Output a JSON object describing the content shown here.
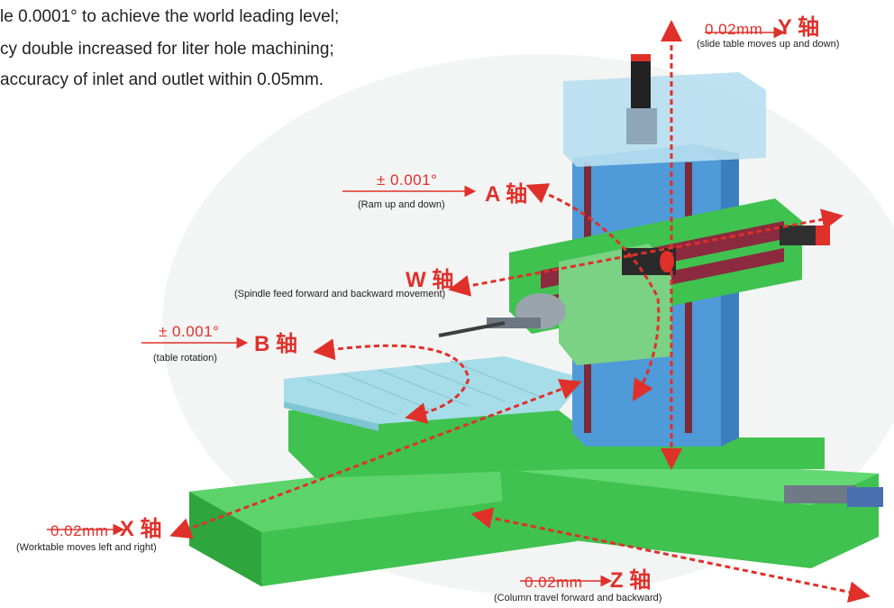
{
  "bullets": [
    "le 0.0001° to achieve the world leading level;",
    "cy double increased for liter hole machining;",
    " accuracy of inlet and outlet within 0.05mm."
  ],
  "axes": {
    "y": {
      "value": "0.02mm",
      "name": "Y 轴",
      "desc": "(slide table moves up and down)"
    },
    "a": {
      "value": "± 0.001°",
      "name": "A 轴",
      "desc": "(Ram up and down)"
    },
    "w": {
      "value": "",
      "name": "W 轴",
      "desc": "(Spindle feed forward and backward movement)"
    },
    "b": {
      "value": "± 0.001°",
      "name": "B 轴",
      "desc": "(table rotation)"
    },
    "x": {
      "value": "0.02mm",
      "name": "X 轴",
      "desc": "(Worktable moves left and right)"
    },
    "z": {
      "value": "0.02mm",
      "name": "Z 轴",
      "desc": "(Column travel forward and backward)"
    }
  },
  "colors": {
    "accent": "#e0302a",
    "machine_green": "#3fc24f",
    "column_blue": "#4f9ad8",
    "table_cyan": "#a6dde8"
  }
}
